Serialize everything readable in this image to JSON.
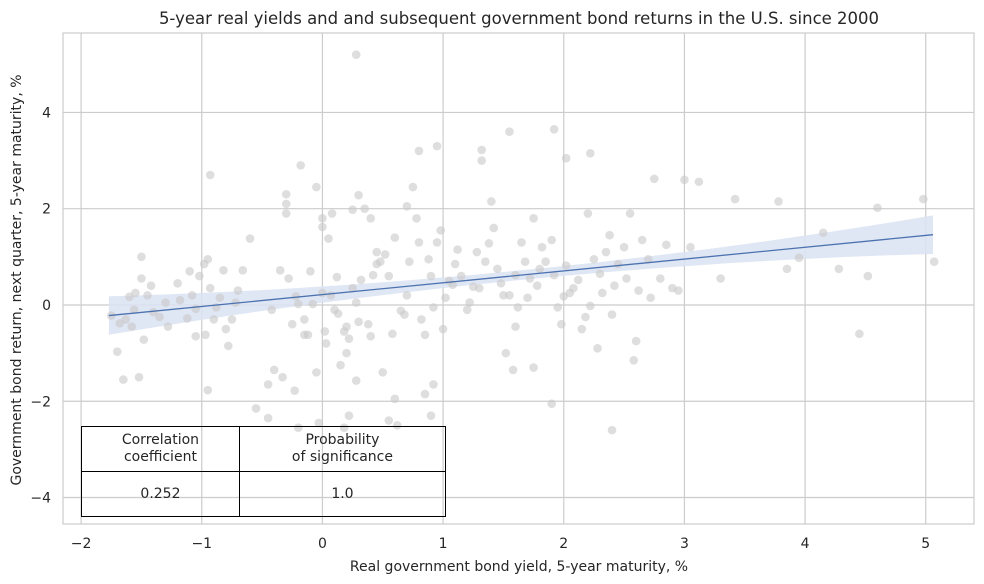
{
  "chart_data": {
    "type": "scatter",
    "title": "5-year real yields and and subsequent government bond returns in the U.S. since 2000",
    "xlabel": "Real government bond yield, 5-year maturity, %",
    "ylabel": "Government bond return, next quarter, 5-year maturity, %",
    "xlim": [
      -2.15,
      5.4
    ],
    "ylim": [
      -4.55,
      5.65
    ],
    "x_ticks": [
      -2,
      -1,
      0,
      1,
      2,
      3,
      4,
      5
    ],
    "y_ticks": [
      -4,
      -2,
      0,
      2,
      4
    ],
    "grid": true,
    "colors": {
      "points": "#c8c8c8",
      "line": "#4c72b0",
      "band": "#dbe3f2"
    },
    "regression": {
      "x": [
        -1.77,
        5.06
      ],
      "y": [
        -0.22,
        1.46
      ],
      "band_half_width_ends": 0.4,
      "band_half_width_center": 0.1
    },
    "points": [
      [
        -1.75,
        -0.22
      ],
      [
        -1.7,
        -0.97
      ],
      [
        -1.68,
        -0.38
      ],
      [
        -1.65,
        -1.55
      ],
      [
        -1.63,
        -0.3
      ],
      [
        -1.6,
        0.17
      ],
      [
        -1.58,
        -0.45
      ],
      [
        -1.56,
        -0.1
      ],
      [
        -1.55,
        0.25
      ],
      [
        -1.52,
        -1.5
      ],
      [
        -1.5,
        0.55
      ],
      [
        -1.5,
        1.0
      ],
      [
        -1.48,
        -0.72
      ],
      [
        -1.45,
        0.2
      ],
      [
        -1.42,
        0.4
      ],
      [
        -1.4,
        -0.15
      ],
      [
        -1.35,
        -0.25
      ],
      [
        -1.3,
        0.05
      ],
      [
        -1.28,
        -0.45
      ],
      [
        -1.2,
        0.45
      ],
      [
        -1.18,
        0.1
      ],
      [
        -1.12,
        -0.28
      ],
      [
        -1.1,
        0.7
      ],
      [
        -1.08,
        0.2
      ],
      [
        -1.05,
        -0.65
      ],
      [
        -1.05,
        -0.08
      ],
      [
        -1.02,
        0.6
      ],
      [
        -0.98,
        0.85
      ],
      [
        -0.97,
        -0.62
      ],
      [
        -0.95,
        0.95
      ],
      [
        -0.95,
        -1.77
      ],
      [
        -0.93,
        0.35
      ],
      [
        -0.9,
        -0.3
      ],
      [
        -0.88,
        -0.05
      ],
      [
        -0.85,
        0.15
      ],
      [
        -0.82,
        0.72
      ],
      [
        -0.8,
        -0.5
      ],
      [
        -0.78,
        -0.85
      ],
      [
        -0.75,
        -0.3
      ],
      [
        -0.72,
        0.05
      ],
      [
        -0.7,
        0.3
      ],
      [
        -0.66,
        0.72
      ],
      [
        -0.93,
        2.7
      ],
      [
        -0.6,
        1.38
      ],
      [
        -0.55,
        -2.15
      ],
      [
        -0.45,
        -1.65
      ],
      [
        -0.42,
        -0.1
      ],
      [
        -0.4,
        -1.35
      ],
      [
        -0.35,
        0.72
      ],
      [
        -0.33,
        -1.5
      ],
      [
        -0.3,
        2.1
      ],
      [
        -0.3,
        2.3
      ],
      [
        -0.28,
        0.55
      ],
      [
        -0.25,
        -0.4
      ],
      [
        -0.23,
        -1.78
      ],
      [
        -0.22,
        0.18
      ],
      [
        -0.2,
        0.02
      ],
      [
        -0.18,
        2.9
      ],
      [
        -0.15,
        -0.3
      ],
      [
        -0.15,
        -0.62
      ],
      [
        -0.12,
        -0.62
      ],
      [
        -0.1,
        0.7
      ],
      [
        -0.08,
        0.02
      ],
      [
        -0.05,
        -1.4
      ],
      [
        -0.03,
        -2.45
      ],
      [
        0.0,
        1.62
      ],
      [
        0.0,
        0.25
      ],
      [
        0.0,
        1.8
      ],
      [
        0.02,
        -0.55
      ],
      [
        0.03,
        -0.8
      ],
      [
        0.05,
        1.38
      ],
      [
        0.07,
        0.2
      ],
      [
        0.1,
        -0.1
      ],
      [
        0.12,
        0.58
      ],
      [
        0.13,
        -0.18
      ],
      [
        0.15,
        -1.25
      ],
      [
        0.18,
        -0.55
      ],
      [
        0.2,
        -0.45
      ],
      [
        0.2,
        -1.0
      ],
      [
        0.22,
        -0.7
      ],
      [
        0.25,
        1.98
      ],
      [
        0.25,
        0.35
      ],
      [
        0.28,
        -1.57
      ],
      [
        0.28,
        0.05
      ],
      [
        0.3,
        -0.35
      ],
      [
        0.3,
        2.28
      ],
      [
        0.32,
        0.52
      ],
      [
        0.35,
        2.0
      ],
      [
        0.38,
        -0.4
      ],
      [
        0.4,
        -0.65
      ],
      [
        0.42,
        0.62
      ],
      [
        0.45,
        0.85
      ],
      [
        0.45,
        1.1
      ],
      [
        0.48,
        0.9
      ],
      [
        0.5,
        -1.4
      ],
      [
        0.52,
        1.05
      ],
      [
        0.55,
        0.6
      ],
      [
        0.58,
        -0.6
      ],
      [
        0.6,
        1.4
      ],
      [
        0.62,
        -2.5
      ],
      [
        0.65,
        -0.12
      ],
      [
        0.68,
        -0.2
      ],
      [
        0.7,
        0.2
      ],
      [
        0.72,
        0.9
      ],
      [
        0.75,
        2.45
      ],
      [
        0.78,
        1.8
      ],
      [
        0.8,
        1.3
      ],
      [
        0.82,
        -0.3
      ],
      [
        0.85,
        -0.62
      ],
      [
        0.88,
        0.95
      ],
      [
        0.9,
        0.6
      ],
      [
        0.92,
        -0.05
      ],
      [
        0.95,
        1.3
      ],
      [
        0.98,
        1.55
      ],
      [
        1.0,
        -0.5
      ],
      [
        1.02,
        0.15
      ],
      [
        1.05,
        0.5
      ],
      [
        1.08,
        0.42
      ],
      [
        1.1,
        0.85
      ],
      [
        1.12,
        1.15
      ],
      [
        1.15,
        0.6
      ],
      [
        1.2,
        -0.1
      ],
      [
        1.22,
        0.05
      ],
      [
        1.25,
        0.38
      ],
      [
        1.28,
        1.1
      ],
      [
        1.3,
        0.35
      ],
      [
        1.35,
        0.9
      ],
      [
        1.38,
        1.28
      ],
      [
        1.4,
        2.15
      ],
      [
        1.42,
        1.6
      ],
      [
        1.45,
        0.75
      ],
      [
        1.48,
        0.45
      ],
      [
        1.5,
        0.2
      ],
      [
        1.52,
        -1.0
      ],
      [
        1.55,
        0.2
      ],
      [
        1.58,
        -1.35
      ],
      [
        1.6,
        0.62
      ],
      [
        1.62,
        -0.05
      ],
      [
        1.65,
        1.3
      ],
      [
        1.68,
        0.9
      ],
      [
        1.7,
        0.15
      ],
      [
        1.72,
        0.55
      ],
      [
        1.75,
        1.8
      ],
      [
        1.78,
        0.4
      ],
      [
        1.8,
        0.75
      ],
      [
        1.82,
        1.2
      ],
      [
        1.85,
        0.9
      ],
      [
        1.9,
        1.35
      ],
      [
        1.92,
        0.62
      ],
      [
        1.95,
        -0.05
      ],
      [
        1.98,
        -0.4
      ],
      [
        2.0,
        0.18
      ],
      [
        2.02,
        0.82
      ],
      [
        2.05,
        0.25
      ],
      [
        2.08,
        0.35
      ],
      [
        2.12,
        0.52
      ],
      [
        2.15,
        -0.5
      ],
      [
        2.18,
        -0.25
      ],
      [
        2.2,
        1.9
      ],
      [
        2.22,
        -0.02
      ],
      [
        2.25,
        0.95
      ],
      [
        2.28,
        -0.9
      ],
      [
        2.3,
        0.65
      ],
      [
        2.32,
        0.25
      ],
      [
        2.35,
        1.1
      ],
      [
        2.38,
        1.45
      ],
      [
        2.4,
        -0.2
      ],
      [
        2.42,
        0.4
      ],
      [
        2.45,
        0.85
      ],
      [
        2.5,
        1.2
      ],
      [
        2.52,
        0.55
      ],
      [
        2.55,
        1.9
      ],
      [
        2.6,
        -0.75
      ],
      [
        2.62,
        0.3
      ],
      [
        2.65,
        1.35
      ],
      [
        2.7,
        0.95
      ],
      [
        2.72,
        0.15
      ],
      [
        2.75,
        2.62
      ],
      [
        2.8,
        0.55
      ],
      [
        2.85,
        1.25
      ],
      [
        2.9,
        0.35
      ],
      [
        2.95,
        0.3
      ],
      [
        3.0,
        2.6
      ],
      [
        3.05,
        1.2
      ],
      [
        3.12,
        2.56
      ],
      [
        3.3,
        0.55
      ],
      [
        3.42,
        2.2
      ],
      [
        3.78,
        2.15
      ],
      [
        3.85,
        0.75
      ],
      [
        3.95,
        0.98
      ],
      [
        4.15,
        1.5
      ],
      [
        4.28,
        0.75
      ],
      [
        4.45,
        -0.6
      ],
      [
        4.52,
        0.6
      ],
      [
        4.6,
        2.02
      ],
      [
        4.98,
        2.2
      ],
      [
        5.07,
        0.9
      ],
      [
        0.28,
        5.2
      ],
      [
        1.55,
        3.6
      ],
      [
        1.92,
        3.65
      ],
      [
        0.95,
        3.3
      ],
      [
        0.8,
        3.2
      ],
      [
        1.32,
        3.22
      ],
      [
        1.32,
        3.0
      ],
      [
        2.22,
        3.15
      ],
      [
        2.02,
        3.05
      ],
      [
        -0.3,
        1.9
      ],
      [
        -0.05,
        2.45
      ],
      [
        0.08,
        1.9
      ],
      [
        0.4,
        1.8
      ],
      [
        0.7,
        2.05
      ],
      [
        1.6,
        -0.45
      ],
      [
        1.75,
        -1.3
      ],
      [
        1.9,
        -2.05
      ],
      [
        2.4,
        -2.6
      ],
      [
        2.58,
        -1.15
      ],
      [
        0.55,
        -2.4
      ],
      [
        0.22,
        -2.3
      ],
      [
        0.18,
        -2.55
      ],
      [
        0.92,
        -1.65
      ],
      [
        0.9,
        -2.3
      ],
      [
        0.85,
        -1.85
      ],
      [
        0.6,
        -1.95
      ],
      [
        -0.45,
        -2.35
      ],
      [
        -0.2,
        -2.55
      ]
    ]
  },
  "table": {
    "col1_header": "Correlation\ncoefficient",
    "col2_header": "Probability\nof significance",
    "col1_value": "0.252",
    "col2_value": "1.0"
  }
}
